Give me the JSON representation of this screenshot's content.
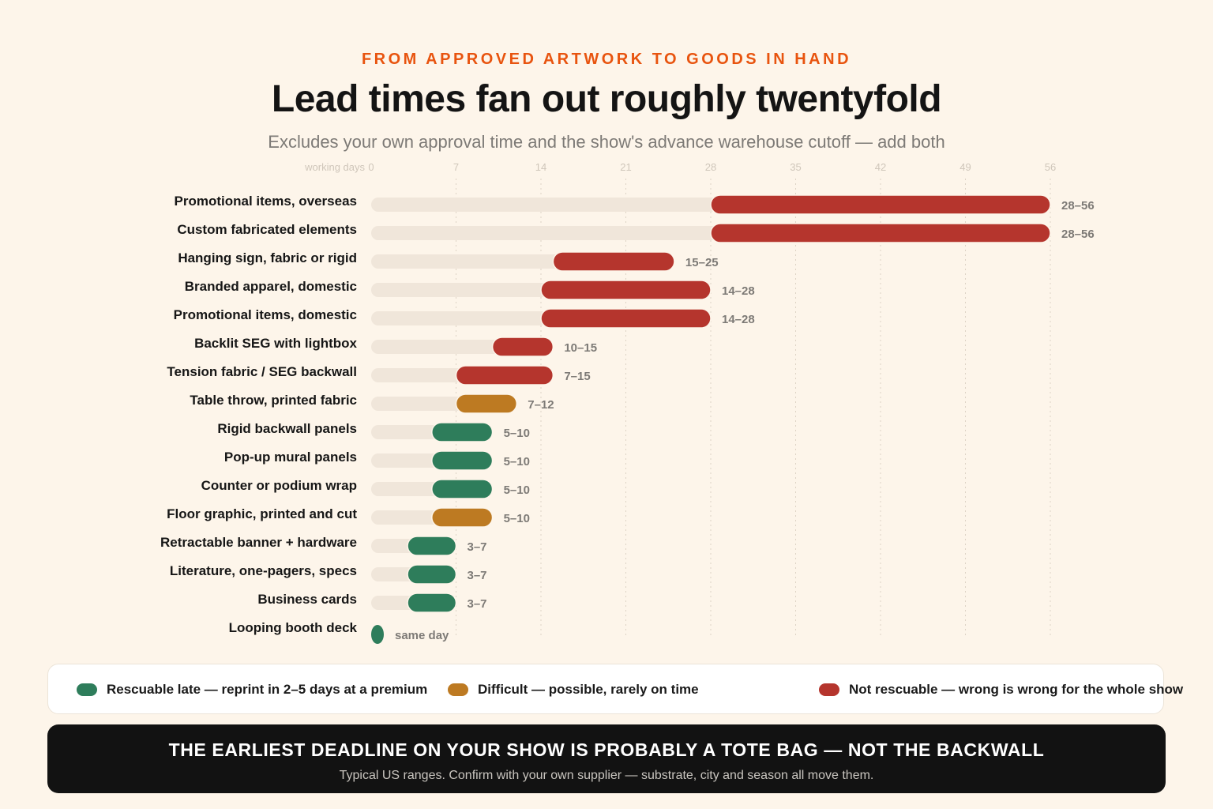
{
  "header": {
    "eyebrow": "FROM APPROVED ARTWORK TO GOODS IN HAND",
    "title": "Lead times fan out roughly twentyfold",
    "subtitle": "Excludes your own approval time and the show's advance warehouse cutoff — add both"
  },
  "colors": {
    "rescuable": "#2e7d5b",
    "difficult": "#bd7a22",
    "not_rescuable": "#b5352d",
    "track": "#f0e6da",
    "background": "#fdf5ea"
  },
  "legend": [
    {
      "key": "rescuable",
      "label": "Rescuable late — reprint in 2–5 days at a premium",
      "color": "#2e7d5b"
    },
    {
      "key": "difficult",
      "label": "Difficult — possible, rarely on time",
      "color": "#bd7a22"
    },
    {
      "key": "not_rescuable",
      "label": "Not rescuable — wrong is wrong for the whole show",
      "color": "#b5352d"
    }
  ],
  "chart_data": {
    "type": "bar",
    "orientation": "horizontal",
    "style": "range",
    "xlabel": "working days",
    "xlim": [
      0,
      56
    ],
    "xticks": [
      0,
      7,
      14,
      21,
      28,
      35,
      42,
      49,
      56
    ],
    "grid": true,
    "rows": [
      {
        "label": "Promotional items, overseas",
        "min": 28,
        "max": 56,
        "value_label": "28–56",
        "category": "not_rescuable"
      },
      {
        "label": "Custom fabricated elements",
        "min": 28,
        "max": 56,
        "value_label": "28–56",
        "category": "not_rescuable"
      },
      {
        "label": "Hanging sign, fabric or rigid",
        "min": 15,
        "max": 25,
        "value_label": "15–25",
        "category": "not_rescuable"
      },
      {
        "label": "Branded apparel, domestic",
        "min": 14,
        "max": 28,
        "value_label": "14–28",
        "category": "not_rescuable"
      },
      {
        "label": "Promotional items, domestic",
        "min": 14,
        "max": 28,
        "value_label": "14–28",
        "category": "not_rescuable"
      },
      {
        "label": "Backlit SEG with lightbox",
        "min": 10,
        "max": 15,
        "value_label": "10–15",
        "category": "not_rescuable"
      },
      {
        "label": "Tension fabric / SEG backwall",
        "min": 7,
        "max": 15,
        "value_label": "7–15",
        "category": "not_rescuable"
      },
      {
        "label": "Table throw, printed fabric",
        "min": 7,
        "max": 12,
        "value_label": "7–12",
        "category": "difficult"
      },
      {
        "label": "Rigid backwall panels",
        "min": 5,
        "max": 10,
        "value_label": "5–10",
        "category": "rescuable"
      },
      {
        "label": "Pop-up mural panels",
        "min": 5,
        "max": 10,
        "value_label": "5–10",
        "category": "rescuable"
      },
      {
        "label": "Counter or podium wrap",
        "min": 5,
        "max": 10,
        "value_label": "5–10",
        "category": "rescuable"
      },
      {
        "label": "Floor graphic, printed and cut",
        "min": 5,
        "max": 10,
        "value_label": "5–10",
        "category": "difficult"
      },
      {
        "label": "Retractable banner + hardware",
        "min": 3,
        "max": 7,
        "value_label": "3–7",
        "category": "rescuable"
      },
      {
        "label": "Literature, one-pagers, specs",
        "min": 3,
        "max": 7,
        "value_label": "3–7",
        "category": "rescuable"
      },
      {
        "label": "Business cards",
        "min": 3,
        "max": 7,
        "value_label": "3–7",
        "category": "rescuable"
      },
      {
        "label": "Looping booth deck",
        "min": 0,
        "max": 0,
        "value_label": "same day",
        "category": "rescuable"
      }
    ]
  },
  "footer": {
    "headline": "THE EARLIEST DEADLINE ON YOUR SHOW IS PROBABLY A TOTE BAG — NOT THE BACKWALL",
    "note": "Typical US ranges. Confirm with your own supplier — substrate, city and season all move them."
  }
}
